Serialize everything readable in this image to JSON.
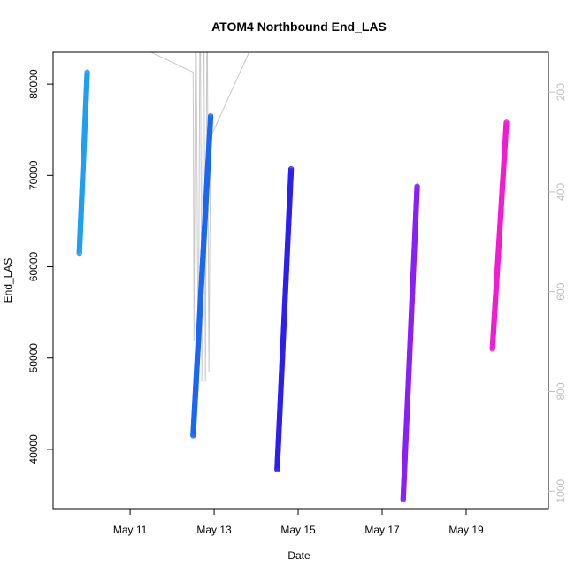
{
  "chart_data": {
    "type": "scatter",
    "title": "ATOM4 Northbound End_LAS",
    "xlabel": "Date",
    "ylabel": "End_LAS",
    "x_axis": {
      "min": "2024-05-09T04:00",
      "max": "2024-05-20T23:00",
      "ticks": [
        {
          "value": "2024-05-11T00:00",
          "label": "May 11"
        },
        {
          "value": "2024-05-13T00:00",
          "label": "May 13"
        },
        {
          "value": "2024-05-15T00:00",
          "label": "May 15"
        },
        {
          "value": "2024-05-17T00:00",
          "label": "May 17"
        },
        {
          "value": "2024-05-19T00:00",
          "label": "May 19"
        }
      ]
    },
    "y_axis": {
      "min": 33500,
      "max": 83500,
      "ticks": [
        40000,
        50000,
        60000,
        70000,
        80000
      ]
    },
    "y2_axis": {
      "reversed": true,
      "min": 120,
      "max": 1035,
      "ticks": [
        200,
        400,
        600,
        800,
        1000
      ],
      "color": "#bdbdbd"
    },
    "series": [
      {
        "color": "#1f9ff0",
        "start": {
          "x": "2024-05-09T19:00",
          "y": 61500
        },
        "end": {
          "x": "2024-05-09T23:30",
          "y": 81300
        }
      },
      {
        "color": "#1a66f5",
        "start": {
          "x": "2024-05-12T12:00",
          "y": 41500
        },
        "end": {
          "x": "2024-05-12T22:00",
          "y": 76500
        }
      },
      {
        "color": "#2b1ff0",
        "start": {
          "x": "2024-05-14T12:00",
          "y": 37800
        },
        "end": {
          "x": "2024-05-14T20:00",
          "y": 70700
        }
      },
      {
        "color": "#8a1ff5",
        "start": {
          "x": "2024-05-17T12:00",
          "y": 34500
        },
        "end": {
          "x": "2024-05-17T20:00",
          "y": 68800
        }
      },
      {
        "color": "#f21bd1",
        "start": {
          "x": "2024-05-19T15:00",
          "y": 51000
        },
        "end": {
          "x": "2024-05-19T23:00",
          "y": 75800
        }
      }
    ],
    "secondary_line": {
      "color": "#c8c8c8",
      "points": [
        {
          "x": "2024-05-10T00:00",
          "y2": 20
        },
        {
          "x": "2024-05-11T12:00",
          "y2": 120
        },
        {
          "x": "2024-05-12T12:00",
          "y2": 160
        },
        {
          "x": "2024-05-12T12:30",
          "y2": 700
        },
        {
          "x": "2024-05-12T13:30",
          "y2": -50
        },
        {
          "x": "2024-05-12T15:00",
          "y2": 800
        },
        {
          "x": "2024-05-12T16:00",
          "y2": -80
        },
        {
          "x": "2024-05-12T17:00",
          "y2": 780
        },
        {
          "x": "2024-05-12T18:00",
          "y2": -60
        },
        {
          "x": "2024-05-12T19:00",
          "y2": 780
        },
        {
          "x": "2024-05-12T20:00",
          "y2": -40
        },
        {
          "x": "2024-05-12T21:00",
          "y2": 760
        },
        {
          "x": "2024-05-12T22:00",
          "y2": 290
        },
        {
          "x": "2024-05-13T20:00",
          "y2": 120
        }
      ]
    }
  }
}
